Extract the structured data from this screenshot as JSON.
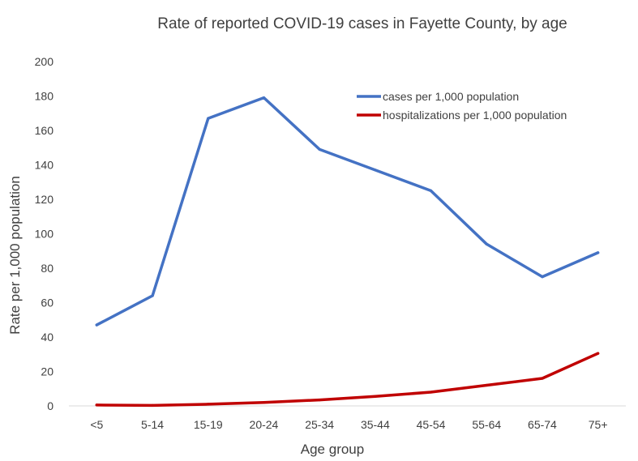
{
  "chart_data": {
    "type": "line",
    "title": "Rate of reported COVID-19 cases in Fayette County, by age",
    "xlabel": "Age group",
    "ylabel": "Rate per 1,000 population",
    "categories": [
      "<5",
      "5-14",
      "15-19",
      "20-24",
      "25-34",
      "35-44",
      "45-54",
      "55-64",
      "65-74",
      "75+"
    ],
    "ylim": [
      0,
      200
    ],
    "yticks": [
      0,
      20,
      40,
      60,
      80,
      100,
      120,
      140,
      160,
      180,
      200
    ],
    "grid": false,
    "legend_position": "top-right",
    "series": [
      {
        "name": "cases per 1,000 population",
        "color": "#4472C4",
        "values": [
          47,
          64,
          167,
          179,
          149,
          137,
          125,
          94,
          75,
          89
        ]
      },
      {
        "name": "hospitalizations per 1,000 population",
        "color": "#C00000",
        "values": [
          0.5,
          0.3,
          1,
          2,
          3.5,
          5.5,
          8,
          12,
          16,
          30.5
        ]
      }
    ]
  }
}
